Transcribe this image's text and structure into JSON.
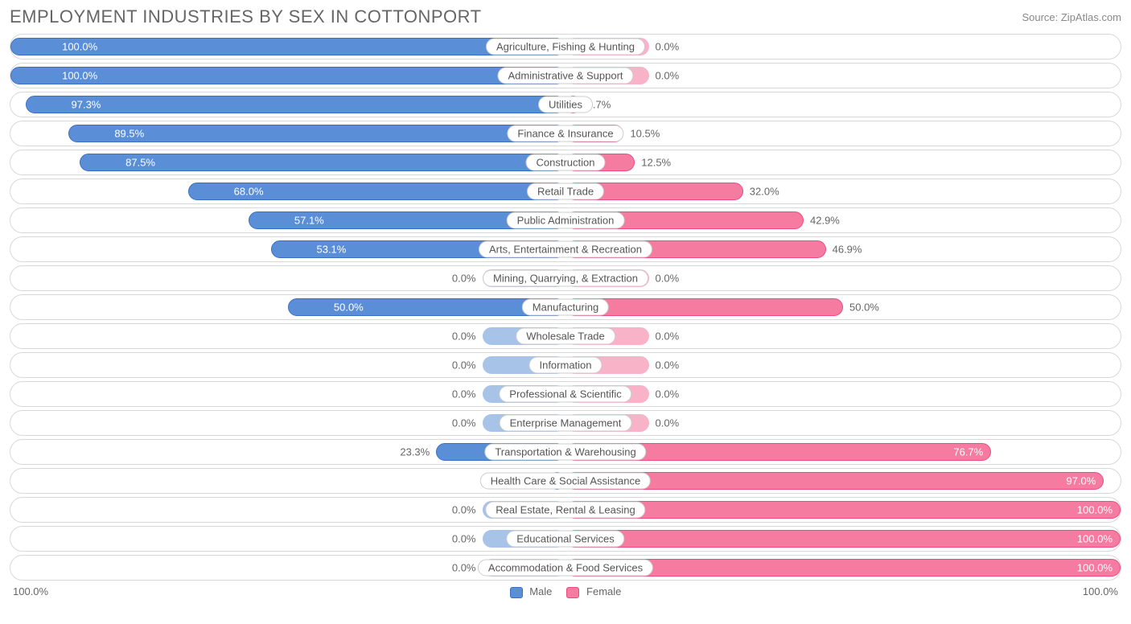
{
  "title": "EMPLOYMENT INDUSTRIES BY SEX IN COTTONPORT",
  "source": "Source: ZipAtlas.com",
  "colors": {
    "male_fill": "#5a8fd8",
    "male_border": "#3b6fc4",
    "female_fill": "#f57ba1",
    "female_border": "#e84c82",
    "null_male_fill": "#a8c3e8",
    "null_female_fill": "#f9b3c9",
    "row_border": "#d8d8d8",
    "text": "#666666",
    "text_light": "#888888",
    "background": "#ffffff"
  },
  "axis": {
    "left_label": "100.0%",
    "right_label": "100.0%",
    "min": 0,
    "max": 100
  },
  "legend": {
    "male": "Male",
    "female": "Female"
  },
  "note_null_bar_pct": 15,
  "rows": [
    {
      "label": "Agriculture, Fishing & Hunting",
      "male": 100.0,
      "female": 0.0,
      "null_data": false
    },
    {
      "label": "Administrative & Support",
      "male": 100.0,
      "female": 0.0,
      "null_data": false
    },
    {
      "label": "Utilities",
      "male": 97.3,
      "female": 2.7,
      "null_data": false
    },
    {
      "label": "Finance & Insurance",
      "male": 89.5,
      "female": 10.5,
      "null_data": false
    },
    {
      "label": "Construction",
      "male": 87.5,
      "female": 12.5,
      "null_data": false
    },
    {
      "label": "Retail Trade",
      "male": 68.0,
      "female": 32.0,
      "null_data": false
    },
    {
      "label": "Public Administration",
      "male": 57.1,
      "female": 42.9,
      "null_data": false
    },
    {
      "label": "Arts, Entertainment & Recreation",
      "male": 53.1,
      "female": 46.9,
      "null_data": false
    },
    {
      "label": "Mining, Quarrying, & Extraction",
      "male": 0.0,
      "female": 0.0,
      "null_data": true
    },
    {
      "label": "Manufacturing",
      "male": 50.0,
      "female": 50.0,
      "null_data": false
    },
    {
      "label": "Wholesale Trade",
      "male": 0.0,
      "female": 0.0,
      "null_data": true
    },
    {
      "label": "Information",
      "male": 0.0,
      "female": 0.0,
      "null_data": true
    },
    {
      "label": "Professional & Scientific",
      "male": 0.0,
      "female": 0.0,
      "null_data": true
    },
    {
      "label": "Enterprise Management",
      "male": 0.0,
      "female": 0.0,
      "null_data": true
    },
    {
      "label": "Transportation & Warehousing",
      "male": 23.3,
      "female": 76.7,
      "null_data": false
    },
    {
      "label": "Health Care & Social Assistance",
      "male": 3.0,
      "female": 97.0,
      "null_data": false
    },
    {
      "label": "Real Estate, Rental & Leasing",
      "male": 0.0,
      "female": 100.0,
      "null_data": false
    },
    {
      "label": "Educational Services",
      "male": 0.0,
      "female": 100.0,
      "null_data": false
    },
    {
      "label": "Accommodation & Food Services",
      "male": 0.0,
      "female": 100.0,
      "null_data": false
    }
  ]
}
